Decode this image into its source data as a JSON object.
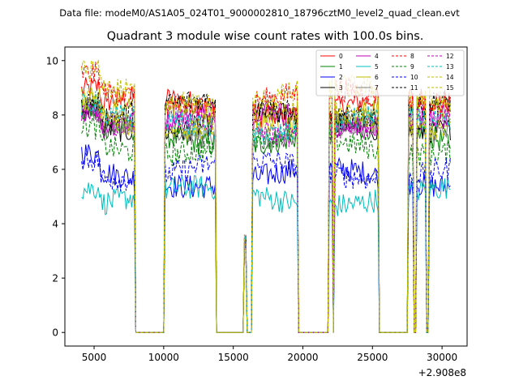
{
  "chart_data": {
    "type": "line",
    "suptitle": "Data file: modeM0/AS1A05_024T01_9000002810_18796cztM0_level2_quad_clean.evt",
    "title": "Quadrant 3 module wise count rates with 100.0s bins.",
    "xlabel": "",
    "ylabel": "",
    "x_offset_label": "+2.908e8",
    "xlim": [
      2900,
      31800
    ],
    "ylim": [
      -0.5,
      10.5
    ],
    "xticks": [
      5000,
      10000,
      15000,
      20000,
      25000,
      30000
    ],
    "xtick_labels": [
      "5000",
      "10000",
      "15000",
      "20000",
      "25000",
      "30000"
    ],
    "yticks": [
      0,
      2,
      4,
      6,
      8,
      10
    ],
    "ytick_labels": [
      "0",
      "2",
      "4",
      "6",
      "8",
      "10"
    ],
    "x_start": 4100,
    "x_end": 30600,
    "bin_size": 100,
    "good_time_intervals": [
      [
        4100,
        7900
      ],
      [
        10100,
        13700
      ],
      [
        15800,
        15900
      ],
      [
        16400,
        19600
      ],
      [
        21900,
        22100
      ],
      [
        22300,
        25400
      ],
      [
        27600,
        27900
      ],
      [
        28200,
        28800
      ],
      [
        29100,
        30600
      ]
    ],
    "legend_location": "upper right",
    "series": [
      {
        "name": "0",
        "color": "#ff0000",
        "dash": "solid",
        "level": 8.3
      },
      {
        "name": "1",
        "color": "#008000",
        "dash": "solid",
        "level": 7.2
      },
      {
        "name": "2",
        "color": "#0000ff",
        "dash": "solid",
        "level": 5.7
      },
      {
        "name": "3",
        "color": "#000000",
        "dash": "solid",
        "level": 7.7
      },
      {
        "name": "4",
        "color": "#bf00bf",
        "dash": "solid",
        "level": 7.9
      },
      {
        "name": "5",
        "color": "#00bfbf",
        "dash": "solid",
        "level": 5.0
      },
      {
        "name": "6",
        "color": "#bfbf00",
        "dash": "solid",
        "level": 8.0
      },
      {
        "name": "7",
        "color": "#808080",
        "dash": "solid",
        "level": 7.4
      },
      {
        "name": "8",
        "color": "#ff0000",
        "dash": "dashed",
        "level": 8.6
      },
      {
        "name": "9",
        "color": "#008000",
        "dash": "dashed",
        "level": 6.9
      },
      {
        "name": "10",
        "color": "#0000ff",
        "dash": "dashed",
        "level": 6.0
      },
      {
        "name": "11",
        "color": "#000000",
        "dash": "dashed",
        "level": 8.2
      },
      {
        "name": "12",
        "color": "#bf00bf",
        "dash": "dashed",
        "level": 7.6
      },
      {
        "name": "13",
        "color": "#00bfbf",
        "dash": "dashed",
        "level": 7.6
      },
      {
        "name": "14",
        "color": "#bfbf00",
        "dash": "dashed",
        "level": 8.7
      },
      {
        "name": "15",
        "color": "#bfbf00",
        "dash": "dashed",
        "level": 7.8
      }
    ]
  }
}
